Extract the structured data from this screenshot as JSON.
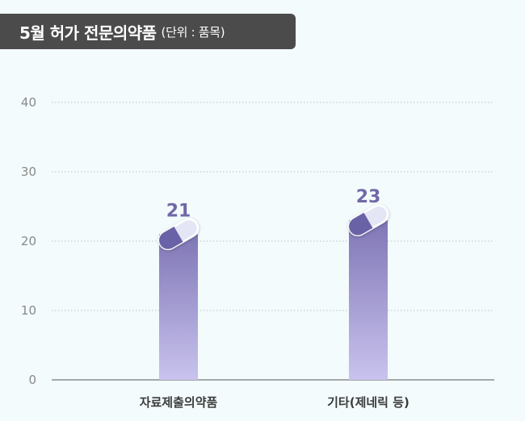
{
  "title": {
    "main": "5월 허가 전문의약품",
    "unit": "(단위 : 품목)"
  },
  "colors": {
    "bar_top": "#7f76b5",
    "bar_bottom": "#c9c3ee",
    "pill_dark": "#6b62a6",
    "pill_light": "#e4e6f5",
    "value_text": "#7068a8",
    "grid": "#b9c3c9",
    "axis": "#555555",
    "title_bg": "#4b4b4b"
  },
  "chart_data": {
    "type": "bar",
    "categories": [
      "자료제출의약품",
      "기타(제네릭 등)"
    ],
    "values": [
      21,
      23
    ],
    "ylim": [
      0,
      40
    ],
    "yticks": [
      "0",
      "10",
      "20",
      "30",
      "40"
    ],
    "data_labels": [
      "21",
      "23"
    ],
    "grid": true
  }
}
